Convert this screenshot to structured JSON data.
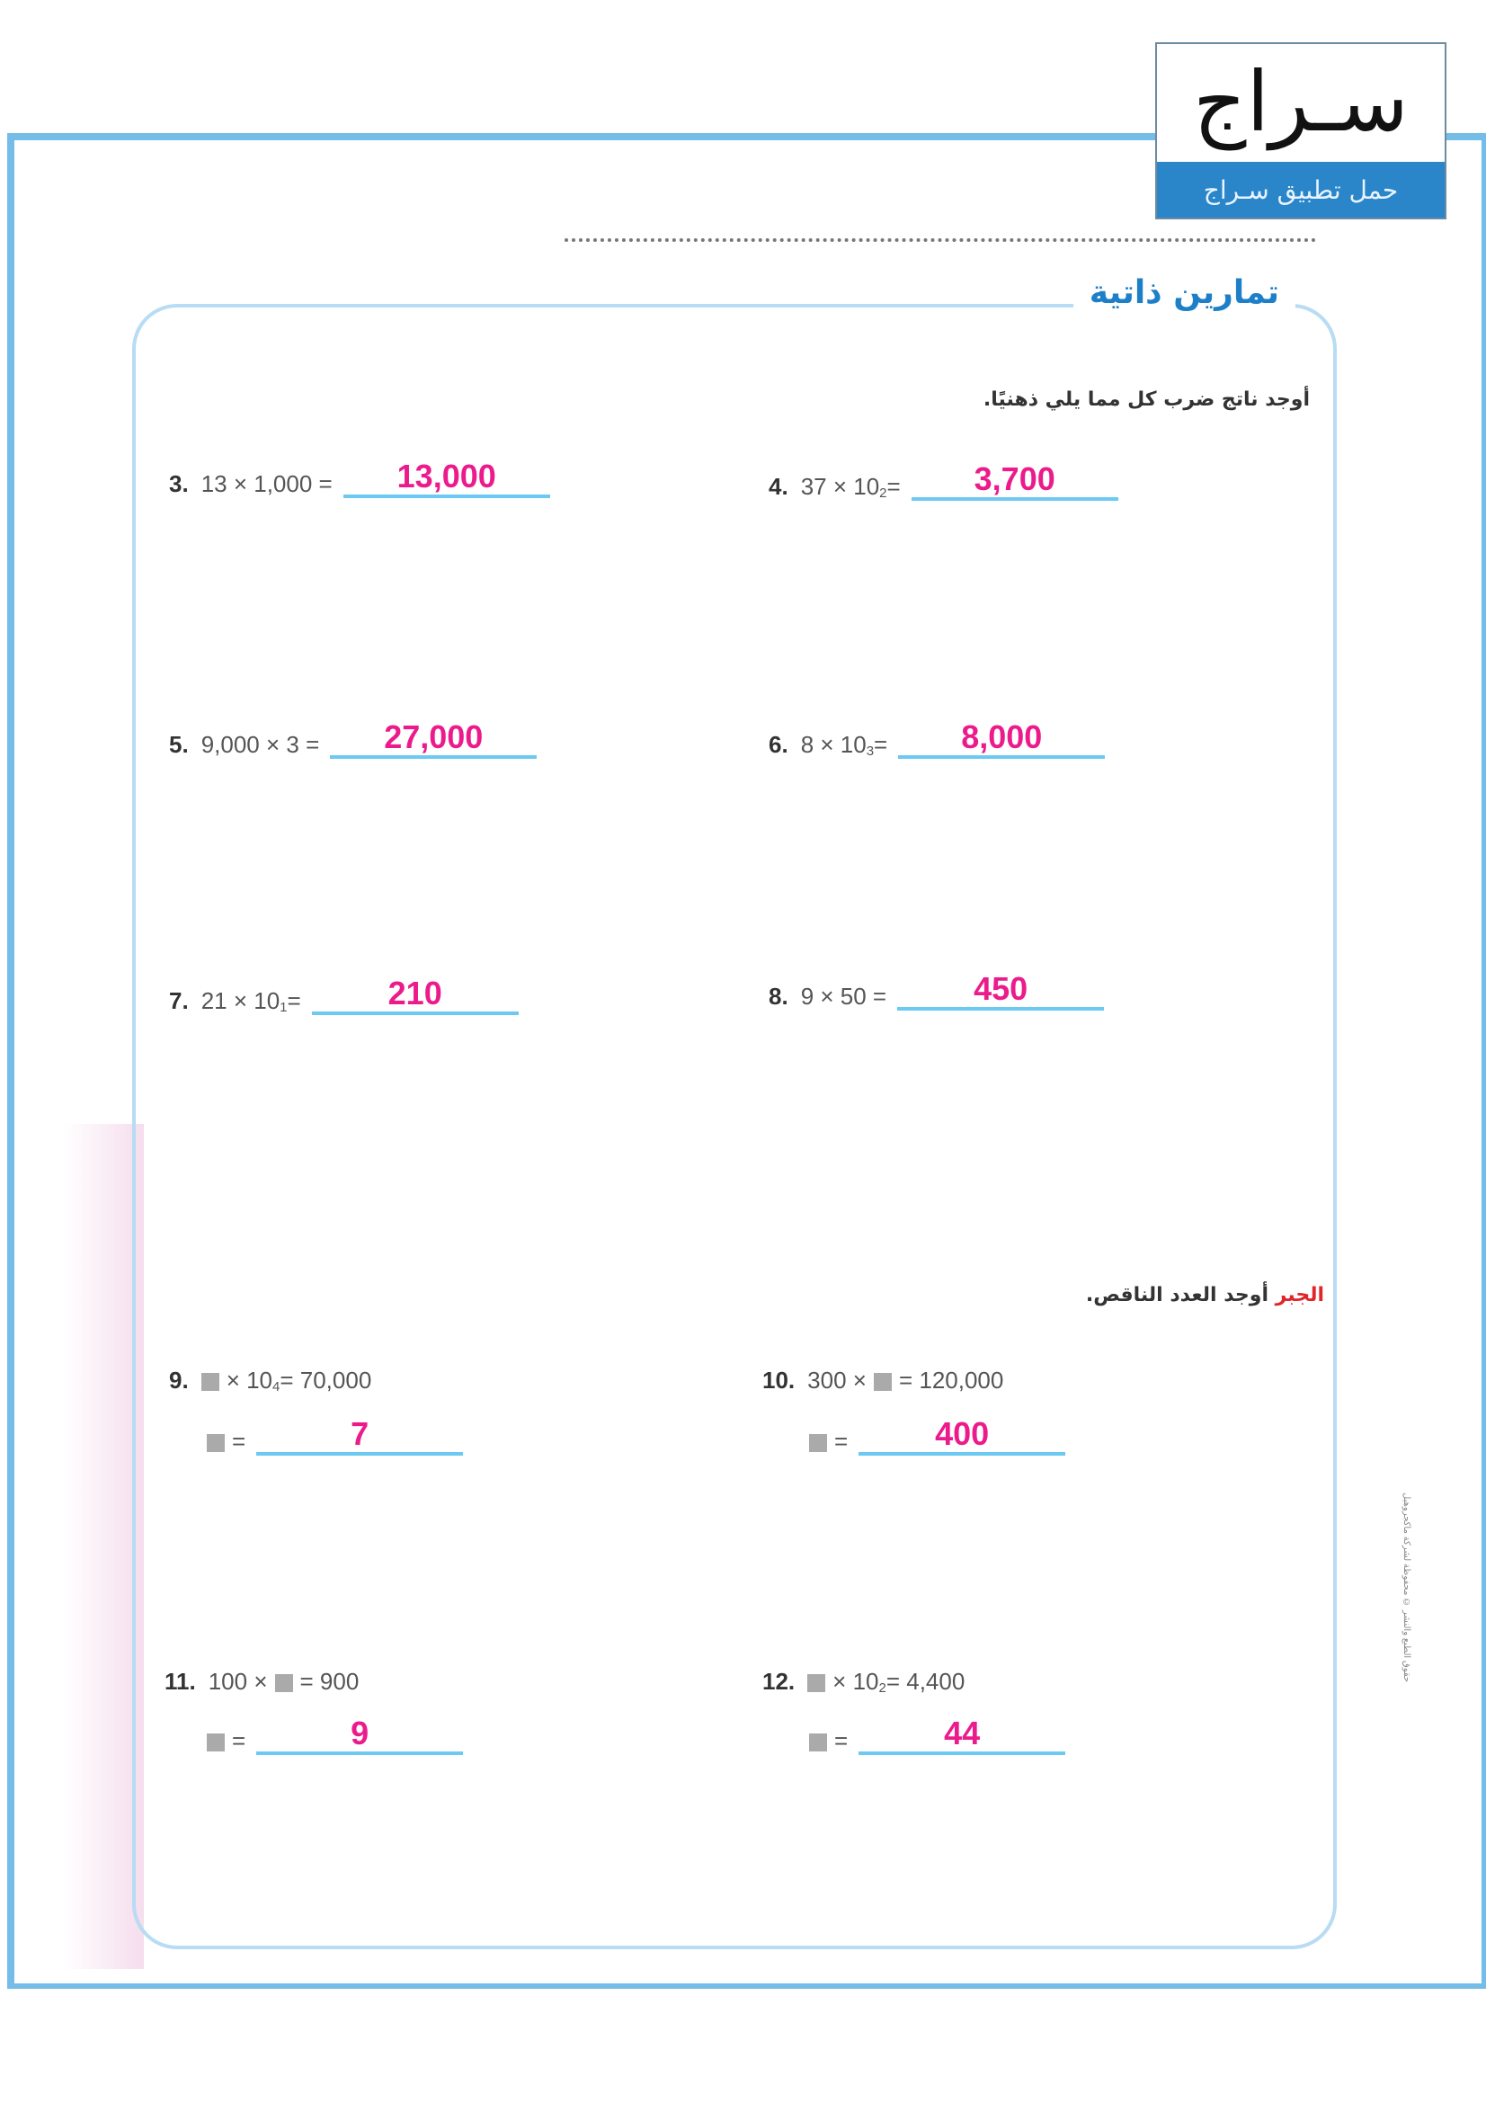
{
  "logo": {
    "name": "سـراج",
    "tagline": "حمل تطبيق سـراج"
  },
  "section_title": "تمارين ذاتية",
  "instruction": "أوجد ناتج ضرب كل مما يلي ذهنيًا.",
  "algebra": {
    "tag": "الجبر",
    "instruction": "أوجد العدد الناقص."
  },
  "problems": [
    {
      "num": "3.",
      "a": "13 × 1,000 =",
      "exp": "",
      "answer": "13,000"
    },
    {
      "num": "4.",
      "a": "37 × 10",
      "exp": "2",
      "b": " =",
      "answer": "3,700"
    },
    {
      "num": "5.",
      "a": "9,000 × 3 =",
      "exp": "",
      "answer": "27,000"
    },
    {
      "num": "6.",
      "a": "8 × 10",
      "exp": "3",
      "b": " =",
      "answer": "8,000"
    },
    {
      "num": "7.",
      "a": "21 × 10",
      "exp": "1",
      "b": " =",
      "answer": "210"
    },
    {
      "num": "8.",
      "a": "9 × 50 =",
      "exp": "",
      "answer": "450"
    }
  ],
  "missing": [
    {
      "num": "9.",
      "pre": "",
      "post": "× 10",
      "exp": "4",
      "tail": " = 70,000",
      "answer": "7"
    },
    {
      "num": "10.",
      "pre": "300 ×",
      "post": "= 120,000",
      "exp": "",
      "tail": "",
      "answer": "400"
    },
    {
      "num": "11.",
      "pre": "100 ×",
      "post": "= 900",
      "exp": "",
      "tail": "",
      "answer": "9"
    },
    {
      "num": "12.",
      "pre": "",
      "post": "× 10",
      "exp": "2",
      "tail": " = 4,400",
      "answer": "44"
    }
  ],
  "eq_sign": "=",
  "side_note": "حقوق الطبع والنشر © محفوظة لشركة ماكجروهيل"
}
